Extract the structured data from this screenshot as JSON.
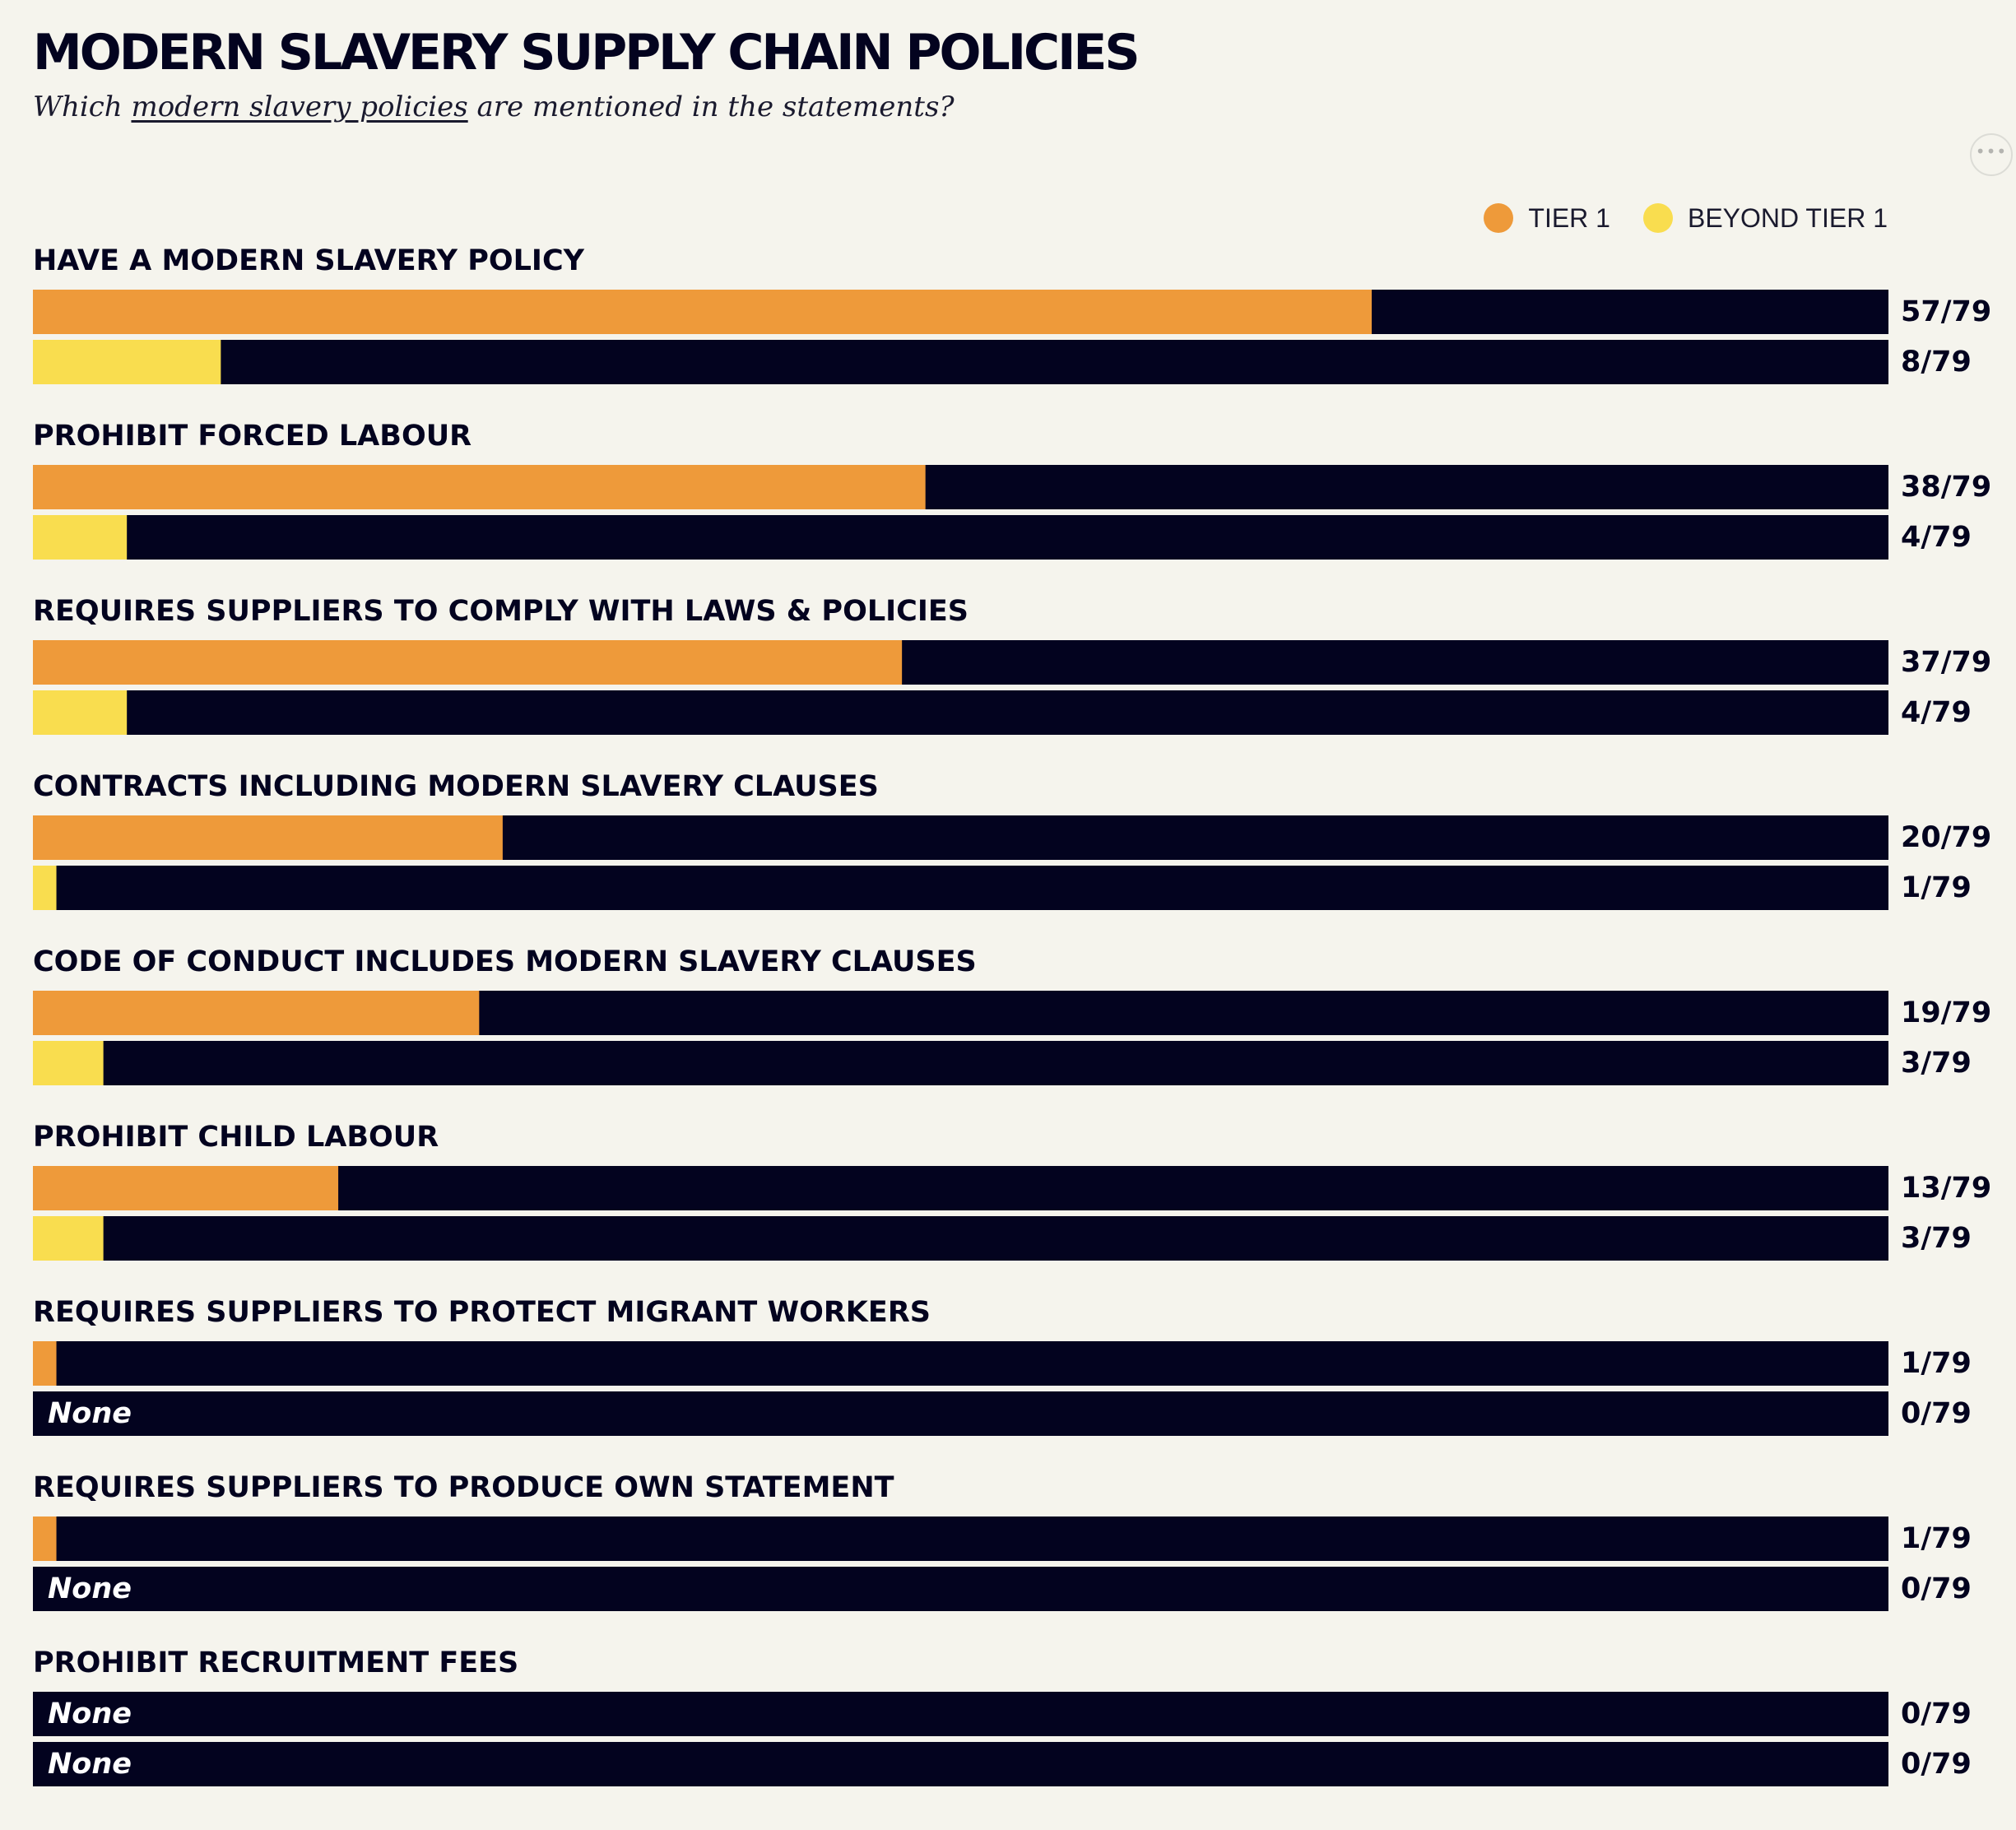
{
  "header": {
    "title": "MODERN SLAVERY SUPPLY CHAIN POLICIES",
    "subtitle_prefix": "Which ",
    "subtitle_link": "modern slavery policies",
    "subtitle_suffix": " are mentioned in the statements?"
  },
  "more_button": {
    "icon": "more-horizontal-icon",
    "label": "•••"
  },
  "colors": {
    "tier1": "#ee9a3a",
    "beyond_tier1": "#f9dd4f",
    "track": "#03031f",
    "background": "#f5f4ed"
  },
  "chart_data": {
    "type": "bar",
    "orientation": "horizontal",
    "title": "MODERN SLAVERY SUPPLY CHAIN POLICIES",
    "subtitle": "Which modern slavery policies are mentioned in the statements?",
    "total": 79,
    "none_label": "None",
    "legend": {
      "placement": "top-right",
      "entries": [
        "TIER 1",
        "BEYOND TIER 1"
      ]
    },
    "series": [
      {
        "name": "TIER 1",
        "color": "#ee9a3a"
      },
      {
        "name": "BEYOND TIER 1",
        "color": "#f9dd4f"
      }
    ],
    "categories": [
      {
        "label": "HAVE A MODERN SLAVERY POLICY",
        "values": [
          57,
          8
        ],
        "labels": [
          "57/79",
          "8/79"
        ]
      },
      {
        "label": "PROHIBIT FORCED LABOUR",
        "values": [
          38,
          4
        ],
        "labels": [
          "38/79",
          "4/79"
        ]
      },
      {
        "label": "REQUIRES SUPPLIERS TO COMPLY WITH LAWS & POLICIES",
        "values": [
          37,
          4
        ],
        "labels": [
          "37/79",
          "4/79"
        ]
      },
      {
        "label": "CONTRACTS INCLUDING MODERN SLAVERY CLAUSES",
        "values": [
          20,
          1
        ],
        "labels": [
          "20/79",
          "1/79"
        ]
      },
      {
        "label": "CODE OF CONDUCT INCLUDES MODERN SLAVERY CLAUSES",
        "values": [
          19,
          3
        ],
        "labels": [
          "19/79",
          "3/79"
        ]
      },
      {
        "label": "PROHIBIT CHILD LABOUR",
        "values": [
          13,
          3
        ],
        "labels": [
          "13/79",
          "3/79"
        ]
      },
      {
        "label": "REQUIRES SUPPLIERS TO PROTECT MIGRANT WORKERS",
        "values": [
          1,
          0
        ],
        "labels": [
          "1/79",
          "0/79"
        ]
      },
      {
        "label": "REQUIRES SUPPLIERS TO PRODUCE OWN STATEMENT",
        "values": [
          1,
          0
        ],
        "labels": [
          "1/79",
          "0/79"
        ]
      },
      {
        "label": "PROHIBIT RECRUITMENT FEES",
        "values": [
          0,
          0
        ],
        "labels": [
          "0/79",
          "0/79"
        ]
      }
    ]
  }
}
